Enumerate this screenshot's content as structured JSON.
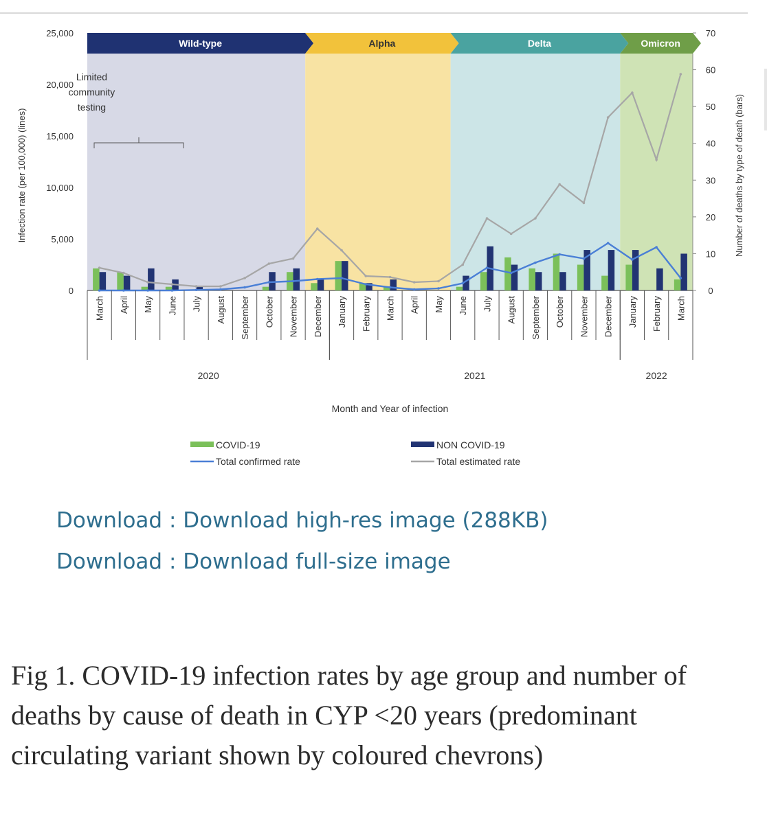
{
  "chart_data": {
    "type": "bar+line",
    "variants": [
      {
        "name": "Wild-type",
        "color": "#1f3272",
        "bg": "#d7d9e6",
        "start": 0,
        "end": 9
      },
      {
        "name": "Alpha",
        "color": "#f2c23b",
        "bg": "#f8e3a3",
        "start": 9,
        "end": 15
      },
      {
        "name": "Delta",
        "color": "#4aa3a0",
        "bg": "#cce5e7",
        "start": 15,
        "end": 22
      },
      {
        "name": "Omicron",
        "color": "#6f9e48",
        "bg": "#cfe3b5",
        "start": 22,
        "end": 25
      }
    ],
    "months": [
      "March",
      "April",
      "May",
      "June",
      "July",
      "August",
      "September",
      "October",
      "November",
      "December",
      "January",
      "February",
      "March",
      "April",
      "May",
      "June",
      "July",
      "August",
      "September",
      "October",
      "November",
      "December",
      "January",
      "February",
      "March"
    ],
    "years": [
      {
        "label": "2020",
        "start": 0,
        "end": 10
      },
      {
        "label": "2021",
        "start": 10,
        "end": 22
      },
      {
        "label": "2022",
        "start": 22,
        "end": 25
      }
    ],
    "xlabel": "Month and Year of infection",
    "ylabel_left": "Infection rate (per 100,000) (lines)",
    "ylabel_right": "Number of deaths by type of death (bars)",
    "ylim_left": [
      0,
      25000
    ],
    "ylim_right": [
      0,
      70
    ],
    "left_ticks": [
      "0",
      "5,000",
      "10,000",
      "15,000",
      "20,000",
      "25,000"
    ],
    "right_ticks": [
      "0",
      "10",
      "20",
      "30",
      "40",
      "50",
      "60",
      "70"
    ],
    "annotation": {
      "text": [
        "Limited",
        "community",
        "testing"
      ],
      "start": 0,
      "end": 4
    },
    "series": [
      {
        "name": "COVID-19",
        "kind": "bar",
        "axis": "right",
        "color": "#7bc05a",
        "values": [
          6,
          5,
          1,
          1,
          0,
          0,
          0,
          1,
          5,
          2,
          8,
          2,
          1,
          0,
          0,
          1,
          5,
          9,
          6,
          10,
          7,
          4,
          7,
          0,
          3
        ]
      },
      {
        "name": "NON COVID-19",
        "kind": "bar",
        "axis": "right",
        "color": "#223473",
        "values": [
          5,
          4,
          6,
          3,
          1,
          0,
          0,
          5,
          6,
          3,
          8,
          2,
          3,
          0,
          0,
          4,
          12,
          7,
          5,
          5,
          11,
          11,
          11,
          6,
          10
        ]
      },
      {
        "name": "Total confirmed rate",
        "kind": "line",
        "axis": "left",
        "color": "#4a7fd6",
        "values": [
          0,
          0,
          0,
          0,
          50,
          100,
          300,
          800,
          900,
          1100,
          1200,
          600,
          300,
          100,
          200,
          700,
          2200,
          1700,
          2700,
          3500,
          3100,
          4600,
          3000,
          4200,
          1200
        ]
      },
      {
        "name": "Total estimated rate",
        "kind": "line",
        "axis": "left",
        "color": "#a6a6a6",
        "values": [
          2200,
          1700,
          800,
          600,
          400,
          400,
          1200,
          2600,
          3100,
          6000,
          3900,
          1400,
          1300,
          800,
          900,
          2500,
          7000,
          5500,
          7000,
          10300,
          8500,
          16800,
          19200,
          12700,
          21000
        ]
      }
    ]
  },
  "links": {
    "hires": "Download : Download high-res image (288KB)",
    "fullsize": "Download : Download full-size image"
  },
  "caption": "Fig 1. COVID-19 infection rates by age group and number of deaths by cause of death in CYP <20 years (predominant circulating variant shown by coloured chevrons)"
}
